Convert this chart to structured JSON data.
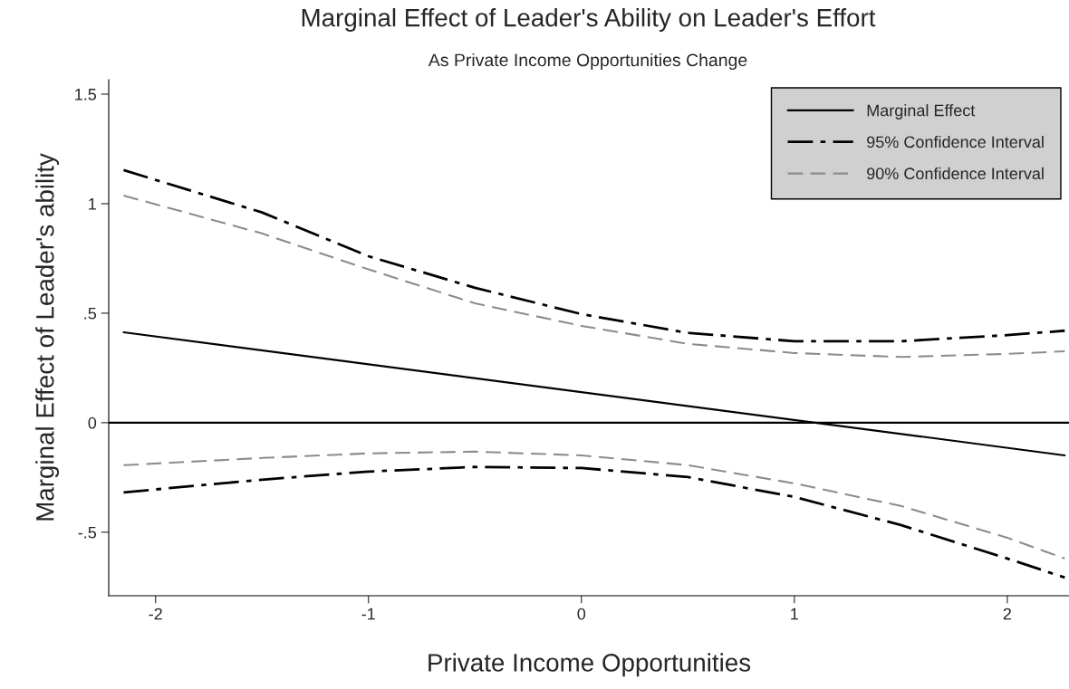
{
  "chart_data": {
    "type": "line",
    "title": "Marginal Effect of Leader's Ability on Leader's Effort",
    "subtitle": "As Private Income Opportunities Change",
    "xlabel": "Private Income Opportunities",
    "ylabel": "Marginal Effect of Leader's ability",
    "series": [
      {
        "name": "Marginal Effect",
        "color": "#000000",
        "line_style": "solid",
        "x": [
          -2.15,
          2.27
        ],
        "values": [
          0.413,
          -0.149
        ]
      },
      {
        "name": "95% Confidence Interval",
        "color": "#000000",
        "line_style": "dashdot",
        "x": [
          -2.15,
          -1.5,
          -1,
          -0.5,
          0,
          0.5,
          1,
          1.5,
          2,
          2.27
        ],
        "values": [
          1.153,
          0.96,
          0.76,
          0.616,
          0.496,
          0.41,
          0.372,
          0.372,
          0.4,
          0.42
        ]
      },
      {
        "color": "#000000",
        "line_style": "dashdot",
        "x": [
          -2.15,
          -1.5,
          -1,
          -0.5,
          0,
          0.5,
          1,
          1.5,
          2,
          2.27
        ],
        "values": [
          -0.318,
          -0.26,
          -0.223,
          -0.202,
          -0.207,
          -0.248,
          -0.339,
          -0.467,
          -0.62,
          -0.707
        ]
      },
      {
        "name": "90% Confidence Interval",
        "color": "#8c8c8c",
        "line_style": "dashed",
        "x": [
          -2.15,
          -1.5,
          -1,
          -0.5,
          0,
          0.5,
          1,
          1.5,
          2,
          2.27
        ],
        "values": [
          1.037,
          0.864,
          0.7,
          0.545,
          0.442,
          0.36,
          0.318,
          0.3,
          0.314,
          0.326
        ]
      },
      {
        "color": "#8c8c8c",
        "line_style": "dashed",
        "x": [
          -2.15,
          -1.5,
          -1,
          -0.5,
          0,
          0.5,
          1,
          1.5,
          2,
          2.27
        ],
        "values": [
          -0.194,
          -0.161,
          -0.14,
          -0.132,
          -0.149,
          -0.194,
          -0.277,
          -0.38,
          -0.525,
          -0.62
        ]
      }
    ],
    "xlim": [
      -2.22,
      2.29
    ],
    "ylim": [
      -0.79,
      1.566
    ],
    "xticks": [
      -2,
      -1,
      0,
      1,
      2
    ],
    "yticks": [
      {
        "value": -0.5,
        "label": "-.5"
      },
      0,
      {
        "value": 0.5,
        "label": ".5"
      },
      1,
      1.5
    ],
    "ref_lines": [
      {
        "axis": "y",
        "value": 0,
        "color": "#000000",
        "line_style": "solid"
      }
    ],
    "legend": "top right",
    "grid": false
  }
}
